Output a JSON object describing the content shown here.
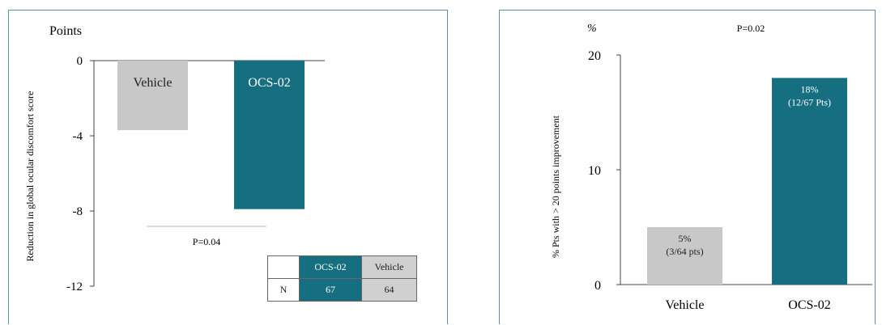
{
  "colors": {
    "vehicle": "#c8c8c8",
    "ocs": "#166f80",
    "axis": "#444444",
    "frame": "#5b93a3"
  },
  "chart_data": [
    {
      "type": "bar",
      "unit_label": "Points",
      "ylabel": "Reduction in global ocular discomfort score",
      "categories": [
        "Vehicle",
        "OCS-02"
      ],
      "values": [
        -3.7,
        -7.9
      ],
      "bar_labels": [
        "Vehicle",
        "OCS-02"
      ],
      "ylim": [
        -12,
        0
      ],
      "yticks": [
        0,
        -4,
        -8,
        -12
      ],
      "ytick_labels": [
        "0",
        "-4",
        "-8",
        "-12"
      ],
      "annotation": "P=0.04",
      "table": {
        "headers": [
          "OCS-02",
          "Vehicle"
        ],
        "row_label": "N",
        "values": [
          "67",
          "64"
        ]
      }
    },
    {
      "type": "bar",
      "unit_label": "%",
      "annotation": "P=0.02",
      "ylabel": "% Pts with > 20 points improvement",
      "categories": [
        "Vehicle",
        "OCS-02"
      ],
      "values": [
        5,
        18
      ],
      "bar_labels": [
        [
          "5%",
          "(3/64 pts)"
        ],
        [
          "18%",
          "(12/67 Pts)"
        ]
      ],
      "ylim": [
        0,
        20
      ],
      "yticks": [
        0,
        10,
        20
      ],
      "ytick_labels": [
        "0",
        "10",
        "20"
      ]
    }
  ]
}
